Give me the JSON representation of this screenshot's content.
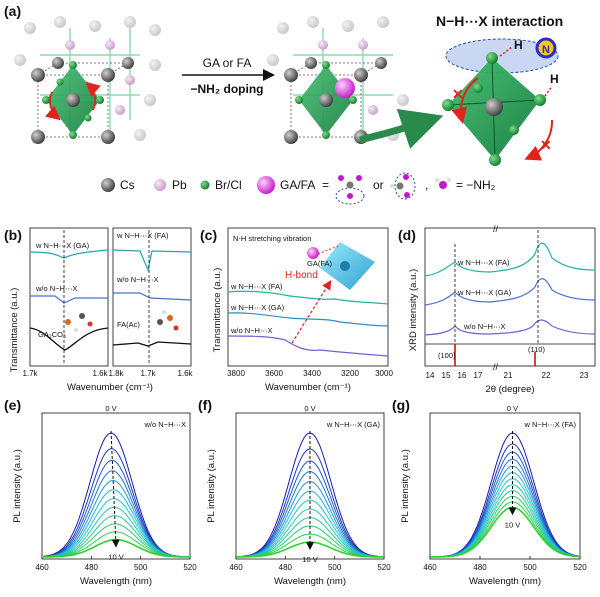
{
  "panel_a": {
    "label": "(a)",
    "arrow_top": "GA or FA",
    "arrow_bottom": "−NH₂ doping",
    "interaction_title": "N−H⋯X interaction",
    "atom_H": "H",
    "atom_N": "N",
    "legend": {
      "cs": "Cs",
      "pb": "Pb",
      "brcl": "Br/Cl",
      "gafa": "GA/FA",
      "eq": "=",
      "or": "or",
      "comma": ",",
      "nh2": "= −NH₂"
    }
  },
  "panel_b": {
    "label": "(b)",
    "ylabel": "Transmittance (a.u.)",
    "xlabel": "Wavenumber (cm⁻¹)",
    "left": {
      "xticks": [
        "1.7k",
        "1.6k"
      ],
      "curve_labels": [
        "w N−H⋯X (GA)",
        "w/o N−H⋯X",
        "GA₂CO₃"
      ]
    },
    "right": {
      "xticks": [
        "1.8k",
        "1.7k",
        "1.6k"
      ],
      "curve_labels": [
        "w N−H⋯X (FA)",
        "w/o N−H⋯X",
        "FA(Ac)"
      ]
    }
  },
  "panel_c": {
    "label": "(c)",
    "ylabel": "Transmittance (a.u.)",
    "xlabel": "Wavenumber (cm⁻¹)",
    "note": "N-H stretching vibration",
    "inset_label": "GA(FA)",
    "hbond": "H-bond",
    "xticks": [
      "3800",
      "3600",
      "3400",
      "3200",
      "3000"
    ],
    "curve_labels": [
      "w N−H⋯X (FA)",
      "w N−H⋯X (GA)",
      "w/o N−H⋯X"
    ]
  },
  "panel_d": {
    "label": "(d)",
    "ylabel": "XRD intensity (a.u.)",
    "xlabel": "2θ (degree)",
    "xticks": [
      "14",
      "15",
      "16",
      "17",
      "21",
      "22",
      "23"
    ],
    "curve_labels": [
      "w N−H⋯X (FA)",
      "w N−H⋯X (GA)",
      "w/o N−H⋯X"
    ],
    "ref_labels": [
      "(100)",
      "(110)"
    ]
  },
  "pl_panels": [
    {
      "label": "(e)",
      "legend": "w/o N−H⋯X",
      "v_top": "0 V",
      "v_bottom": "10 V"
    },
    {
      "label": "(f)",
      "legend": "w N−H⋯X (GA)",
      "v_top": "0 V",
      "v_bottom": "10 V"
    },
    {
      "label": "(g)",
      "legend": "w N−H⋯X (FA)",
      "v_top": "0 V",
      "v_bottom": "10 V"
    }
  ],
  "pl_axes": {
    "ylabel": "PL  intensity (a.u.)",
    "xlabel": "Wavelength (nm)",
    "xticks": [
      "460",
      "480",
      "500",
      "520"
    ]
  },
  "chart_data": [
    {
      "type": "line",
      "panel": "e",
      "x_range": [
        460,
        520
      ],
      "peak_nm": [
        488,
        490
      ],
      "series_count": 12,
      "voltage_range_V": [
        0,
        10
      ],
      "xlabel": "Wavelength (nm)",
      "ylabel": "PL  intensity (a.u.)"
    },
    {
      "type": "line",
      "panel": "f",
      "x_range": [
        460,
        520
      ],
      "peak_nm": [
        490,
        490
      ],
      "series_count": 12,
      "voltage_range_V": [
        0,
        10
      ],
      "xlabel": "Wavelength (nm)",
      "ylabel": "PL  intensity (a.u.)"
    },
    {
      "type": "line",
      "panel": "g",
      "x_range": [
        460,
        520
      ],
      "peak_nm": [
        493,
        493
      ],
      "series_count": 12,
      "voltage_range_V": [
        0,
        10
      ],
      "xlabel": "Wavelength (nm)",
      "ylabel": "PL  intensity (a.u.)"
    }
  ]
}
